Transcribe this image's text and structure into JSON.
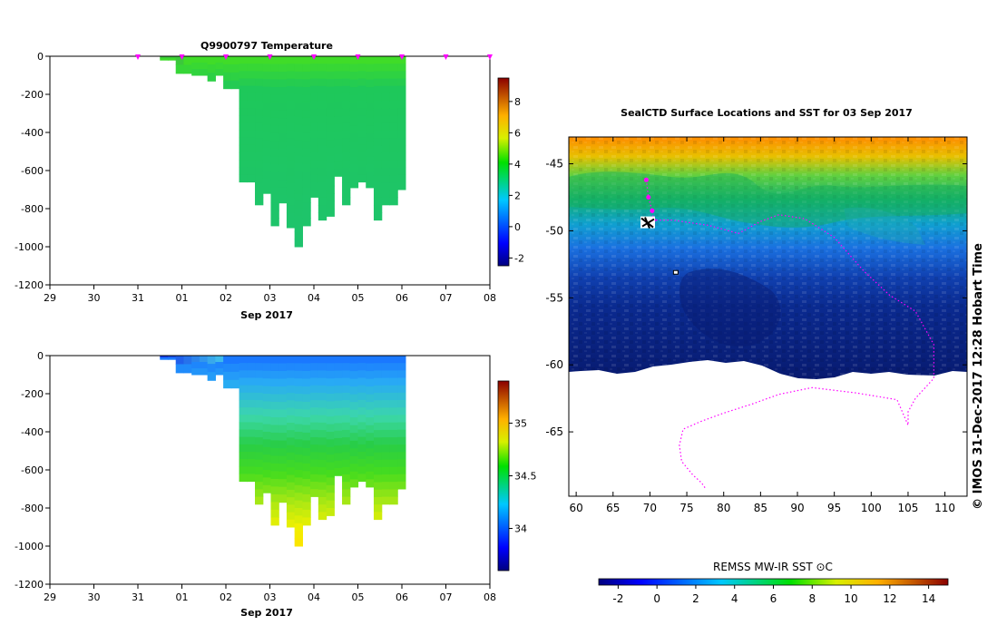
{
  "figure": {
    "credit": "© IMOS 31-Dec-2017 12:28 Hobart Time",
    "colors": {
      "profile_marker": "#ff00ff",
      "track": "#ff00ff"
    }
  },
  "chart_data": [
    {
      "type": "heatmap",
      "id": "temperature_section",
      "title": "Q9900797  Temperature",
      "xlabel": "Sep 2017",
      "ylabel": "",
      "x_tick_labels": [
        "29",
        "30",
        "31",
        "01",
        "02",
        "03",
        "04",
        "05",
        "06",
        "07",
        "08"
      ],
      "y_tick_values": [
        0,
        -200,
        -400,
        -600,
        -800,
        -1000,
        -1200
      ],
      "ylim": [
        -1200,
        0
      ],
      "colorbar": {
        "ticks": [
          -2,
          0,
          2,
          4,
          6,
          8
        ],
        "range": [
          -2.5,
          9.5
        ]
      },
      "profile_depths_m": [
        20,
        20,
        90,
        90,
        100,
        100,
        130,
        100,
        170,
        170,
        660,
        660,
        780,
        720,
        890,
        770,
        900,
        1000,
        890,
        740,
        860,
        840,
        630,
        780,
        690,
        660,
        690,
        860,
        780,
        780,
        700
      ],
      "profile_start_day_index": 2.5,
      "profile_day_spacing": 0.18,
      "profile_marker_days": [
        "31",
        "01",
        "02",
        "03",
        "04",
        "05",
        "06",
        "07",
        "08"
      ],
      "surface_value": 3.6,
      "deep_value": 2.8
    },
    {
      "type": "heatmap",
      "id": "salinity_section",
      "title": "",
      "xlabel": "Sep 2017",
      "ylabel": "",
      "x_tick_labels": [
        "29",
        "30",
        "31",
        "01",
        "02",
        "03",
        "04",
        "05",
        "06",
        "07",
        "08"
      ],
      "y_tick_values": [
        0,
        -200,
        -400,
        -600,
        -800,
        -1000,
        -1200
      ],
      "ylim": [
        -1200,
        0
      ],
      "colorbar": {
        "ticks": [
          34,
          34.5,
          35
        ],
        "range": [
          33.6,
          35.4
        ]
      },
      "surface_value": 33.8,
      "deep_value": 34.7
    },
    {
      "type": "heatmap",
      "id": "sst_map",
      "title": "SealCTD Surface Locations and SST for 03 Sep 2017",
      "xlabel": "",
      "ylabel": "",
      "x_tick_labels": [
        "60",
        "65",
        "70",
        "75",
        "80",
        "85",
        "90",
        "95",
        "100",
        "105",
        "110"
      ],
      "y_tick_labels": [
        "-45",
        "-50",
        "-55",
        "-60",
        "-65"
      ],
      "xlim": [
        59,
        113
      ],
      "ylim": [
        -69.8,
        -43
      ],
      "colorbar_label": "REMSS MW-IR SST ⊙C",
      "colorbar_ticks": [
        "-2",
        "0",
        "2",
        "4",
        "6",
        "8",
        "10",
        "12",
        "14"
      ],
      "colorbar_range": [
        -3,
        15
      ],
      "track": [
        [
          69.5,
          -46.2
        ],
        [
          69.8,
          -47.5
        ],
        [
          70.3,
          -48.5
        ],
        [
          70.5,
          -49.2
        ],
        [
          73,
          -49.2
        ],
        [
          78,
          -49.6
        ],
        [
          82,
          -50.2
        ],
        [
          85,
          -49.3
        ],
        [
          87.5,
          -48.8
        ],
        [
          91,
          -49.1
        ],
        [
          95,
          -50.5
        ],
        [
          99,
          -53
        ],
        [
          102.5,
          -54.8
        ],
        [
          106,
          -56
        ],
        [
          108.5,
          -58.5
        ],
        [
          108.5,
          -61
        ],
        [
          106,
          -62.5
        ],
        [
          105,
          -63.5
        ],
        [
          105,
          -64.5
        ],
        [
          103.5,
          -62.6
        ],
        [
          98,
          -62.1
        ],
        [
          92,
          -61.7
        ],
        [
          87.5,
          -62.2
        ],
        [
          84,
          -62.9
        ],
        [
          80,
          -63.6
        ],
        [
          77,
          -64.2
        ],
        [
          74.5,
          -64.8
        ],
        [
          74,
          -66
        ],
        [
          74.3,
          -67.2
        ],
        [
          75.8,
          -68.2
        ],
        [
          77,
          -68.8
        ],
        [
          77.5,
          -69.2
        ]
      ],
      "deployment_site": [
        69.7,
        -49.4
      ],
      "small_island": [
        73.5,
        -53.1
      ]
    }
  ]
}
